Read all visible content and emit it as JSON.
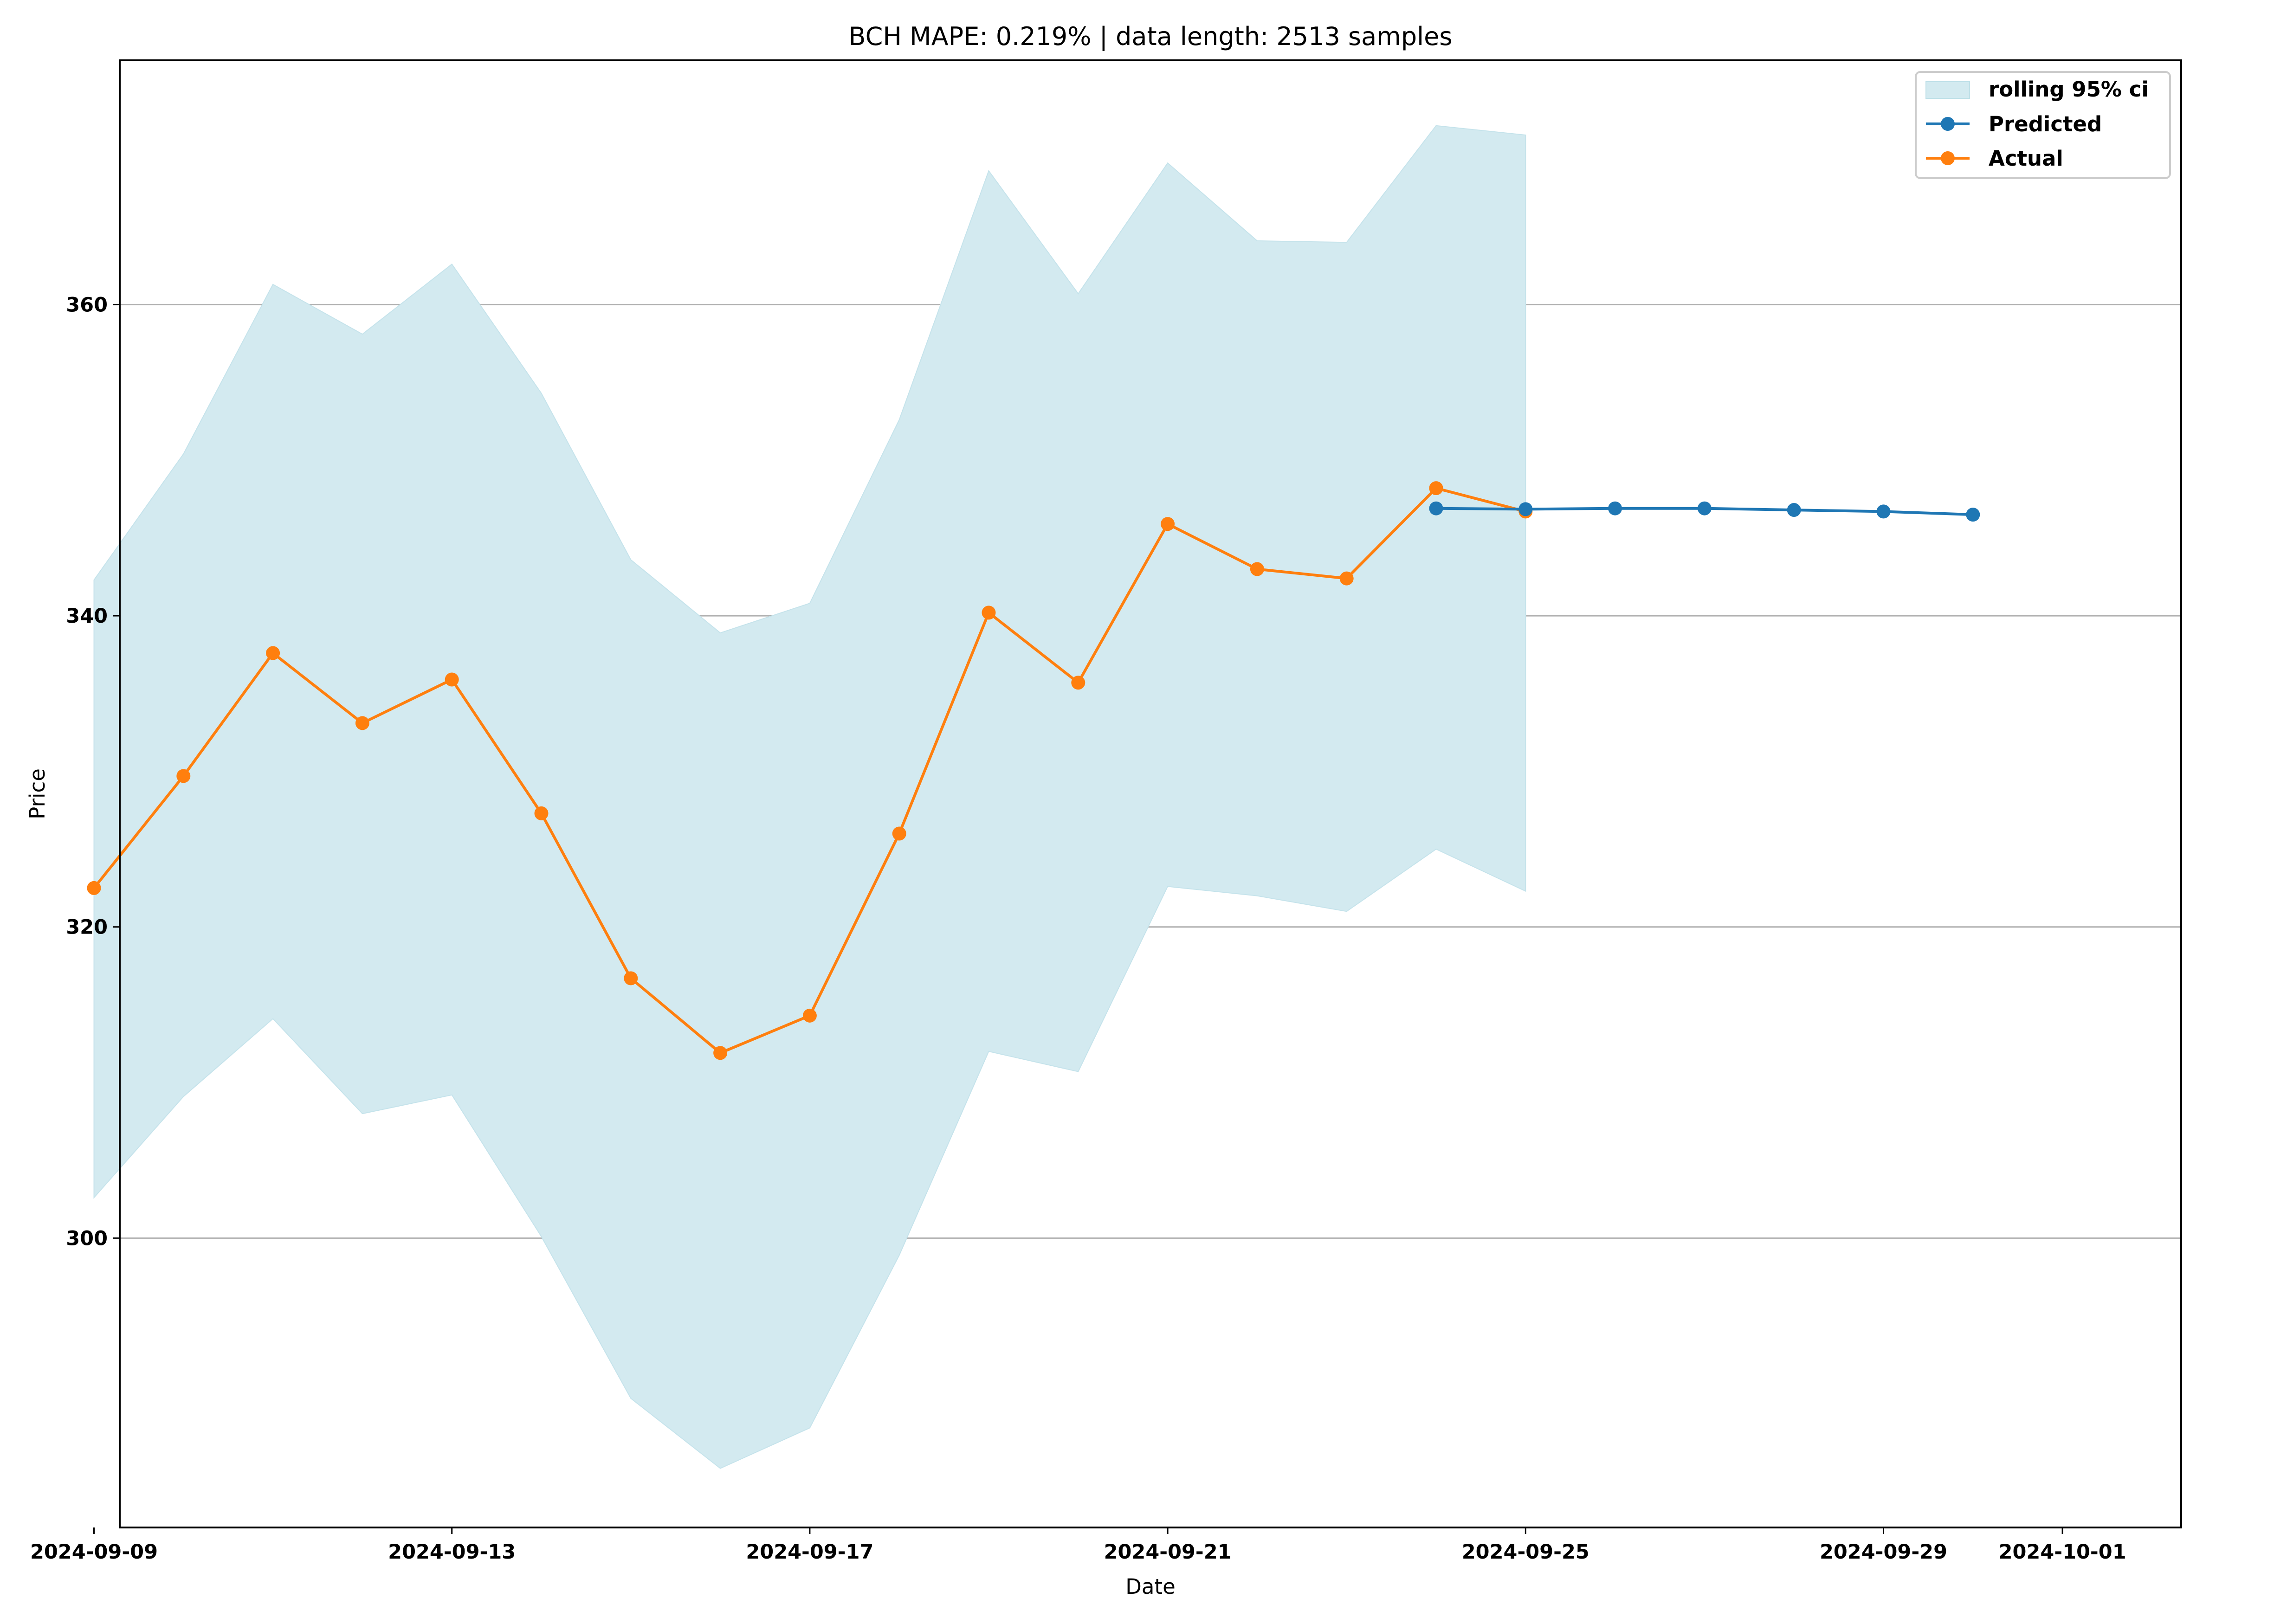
{
  "chart_data": {
    "type": "line",
    "title": "BCH MAPE: 0.219% | data length: 2513 samples",
    "xlabel": "Date",
    "ylabel": "Price",
    "x_ticks": [
      "2024-09-09",
      "2024-09-13",
      "2024-09-17",
      "2024-09-21",
      "2024-09-25",
      "2024-09-29",
      "2024-10-01"
    ],
    "y_ticks": [
      "300",
      "320",
      "340",
      "360"
    ],
    "ylim": [
      281.4,
      375.7
    ],
    "grid": "horizontal",
    "legend_position": "top-right",
    "band": {
      "name": "rolling 95% ci",
      "color": "#d3eaf0",
      "x": [
        "2024-09-09",
        "2024-09-10",
        "2024-09-11",
        "2024-09-12",
        "2024-09-13",
        "2024-09-14",
        "2024-09-15",
        "2024-09-16",
        "2024-09-17",
        "2024-09-18",
        "2024-09-19",
        "2024-09-20",
        "2024-09-21",
        "2024-09-22",
        "2024-09-23",
        "2024-09-24",
        "2024-09-25"
      ],
      "upper": [
        342.3,
        350.4,
        361.3,
        358.1,
        362.6,
        354.3,
        343.6,
        338.9,
        340.8,
        352.6,
        368.6,
        360.7,
        369.1,
        364.1,
        364.0,
        371.5,
        370.9
      ],
      "lower": [
        302.6,
        309.1,
        314.1,
        308.0,
        309.2,
        300.1,
        289.7,
        285.2,
        287.8,
        298.9,
        312.0,
        310.7,
        322.6,
        322.0,
        321.0,
        325.0,
        322.3
      ]
    },
    "series": [
      {
        "name": "Predicted",
        "color": "#1f77b4",
        "x": [
          "2024-09-24",
          "2024-09-25",
          "2024-09-26",
          "2024-09-27",
          "2024-09-28",
          "2024-09-29",
          "2024-09-30"
        ],
        "values": [
          346.9,
          346.85,
          346.9,
          346.9,
          346.8,
          346.7,
          346.5
        ]
      },
      {
        "name": "Actual",
        "color": "#ff7f0e",
        "x": [
          "2024-09-09",
          "2024-09-10",
          "2024-09-11",
          "2024-09-12",
          "2024-09-13",
          "2024-09-14",
          "2024-09-15",
          "2024-09-16",
          "2024-09-17",
          "2024-09-18",
          "2024-09-19",
          "2024-09-20",
          "2024-09-21",
          "2024-09-22",
          "2024-09-23",
          "2024-09-24",
          "2024-09-25"
        ],
        "values": [
          322.5,
          329.7,
          337.6,
          333.1,
          335.9,
          327.3,
          316.7,
          311.9,
          314.3,
          326.0,
          340.2,
          335.7,
          345.9,
          343.0,
          342.4,
          348.2,
          346.7
        ]
      }
    ]
  }
}
